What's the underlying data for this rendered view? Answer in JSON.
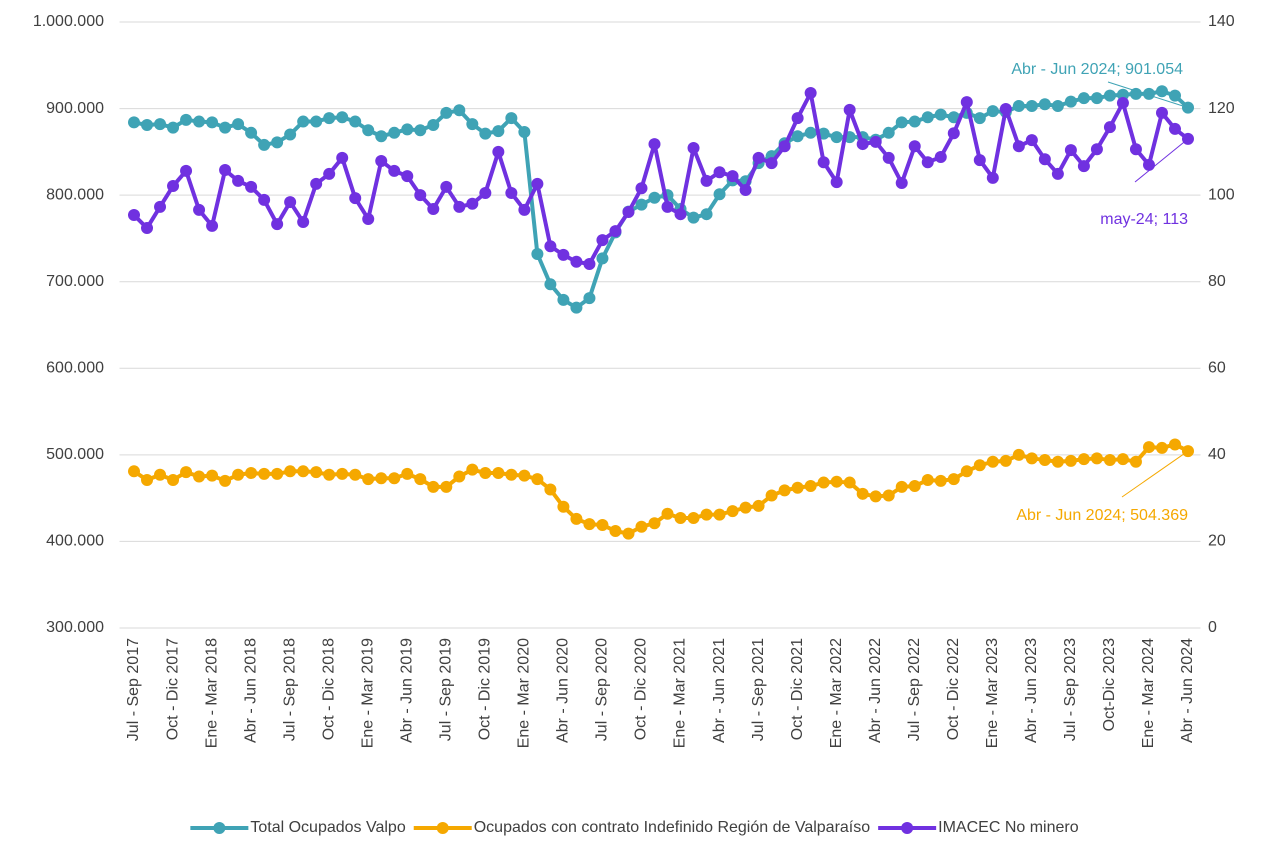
{
  "chart_data": {
    "type": "line",
    "categories": [
      "Jul - Sep 2017",
      null,
      null,
      "Oct - Dic 2017",
      null,
      null,
      "Ene - Mar 2018",
      null,
      null,
      "Abr - Jun 2018",
      null,
      null,
      "Jul - Sep 2018",
      null,
      null,
      "Oct - Dic 2018",
      null,
      null,
      "Ene - Mar 2019",
      null,
      null,
      "Abr - Jun 2019",
      null,
      null,
      "Jul - Sep 2019",
      null,
      null,
      "Oct - Dic 2019",
      null,
      null,
      "Ene - Mar 2020",
      null,
      null,
      "Abr - Jun 2020",
      null,
      null,
      "Jul - Sep 2020",
      null,
      null,
      "Oct - Dic 2020",
      null,
      null,
      "Ene - Mar 2021",
      null,
      null,
      "Abr - Jun 2021",
      null,
      null,
      "Jul - Sep 2021",
      null,
      null,
      "Oct - Dic 2021",
      null,
      null,
      "Ene - Mar 2022",
      null,
      null,
      "Abr - Jun 2022",
      null,
      null,
      "Jul - Sep 2022",
      null,
      null,
      "Oct - Dic 2022",
      null,
      null,
      "Ene - Mar 2023",
      null,
      null,
      "Abr - Jun 2023",
      null,
      null,
      "Jul - Sep 2023",
      null,
      null,
      "Oct-Dic 2023",
      null,
      null,
      "Ene - Mar 2024",
      null,
      null,
      "Abr - Jun 2024"
    ],
    "series": [
      {
        "name": "Total Ocupados Valpo",
        "color": "#3fa3b5",
        "axis": "y",
        "values": [
          884000,
          881000,
          882000,
          878000,
          887000,
          885000,
          884000,
          878000,
          882000,
          872000,
          858000,
          861000,
          870000,
          885000,
          885000,
          889000,
          890000,
          885000,
          875000,
          868000,
          872000,
          876000,
          875000,
          881000,
          895000,
          898000,
          882000,
          871000,
          874000,
          889000,
          873000,
          732000,
          697000,
          679000,
          670000,
          681000,
          727000,
          757000,
          781000,
          789000,
          797000,
          800000,
          784000,
          774000,
          778000,
          801000,
          817000,
          816000,
          837000,
          845000,
          860000,
          868000,
          872000,
          871000,
          867000,
          867000,
          867000,
          864000,
          872000,
          884000,
          885000,
          890000,
          893000,
          890000,
          895000,
          889000,
          897000,
          896000,
          903000,
          903000,
          905000,
          903000,
          908000,
          912000,
          912000,
          915000,
          916000,
          917000,
          917000,
          920000,
          915000,
          901054
        ],
        "value_labels": [
          null,
          null,
          null,
          null,
          null,
          null,
          null,
          null,
          null,
          null,
          null,
          null,
          null,
          null,
          null,
          null,
          null,
          null,
          null,
          null,
          null,
          null,
          null,
          null,
          null,
          null,
          null,
          null,
          null,
          null,
          null,
          null,
          null,
          null,
          null,
          null,
          null,
          null,
          null,
          null,
          null,
          null,
          null,
          null,
          null,
          null,
          null,
          null,
          null,
          null,
          null,
          null,
          null,
          null,
          null,
          null,
          null,
          null,
          null,
          null,
          null,
          null,
          null,
          null,
          null,
          null,
          null,
          null,
          null,
          null,
          null,
          null,
          null,
          null,
          null,
          null,
          null,
          null,
          null,
          null,
          null,
          "Abr - Jun 2024; 901.054"
        ]
      },
      {
        "name": "Ocupados con contrato Indefinido Región de Valparaíso",
        "color": "#f5a800",
        "axis": "y",
        "values": [
          481000,
          471000,
          477000,
          471000,
          480000,
          475000,
          476000,
          470000,
          477000,
          479000,
          478000,
          478000,
          481000,
          481000,
          480000,
          477000,
          478000,
          477000,
          472000,
          473000,
          473000,
          478000,
          472000,
          463000,
          463000,
          475000,
          483000,
          479000,
          479000,
          477000,
          476000,
          472000,
          460000,
          440000,
          426000,
          420000,
          419000,
          412000,
          409000,
          417000,
          421000,
          432000,
          427000,
          427000,
          431000,
          431000,
          435000,
          439000,
          441000,
          453000,
          459000,
          462000,
          464000,
          468000,
          469000,
          468000,
          455000,
          452000,
          453000,
          463000,
          464000,
          471000,
          470000,
          472000,
          481000,
          488000,
          492000,
          493000,
          500000,
          496000,
          494000,
          492000,
          493000,
          495000,
          496000,
          494000,
          495000,
          492000,
          509000,
          508000,
          512000,
          504369
        ],
        "value_labels": [
          null,
          null,
          null,
          null,
          null,
          null,
          null,
          null,
          null,
          null,
          null,
          null,
          null,
          null,
          null,
          null,
          null,
          null,
          null,
          null,
          null,
          null,
          null,
          null,
          null,
          null,
          null,
          null,
          null,
          null,
          null,
          null,
          null,
          null,
          null,
          null,
          null,
          null,
          null,
          null,
          null,
          null,
          null,
          null,
          null,
          null,
          null,
          null,
          null,
          null,
          null,
          null,
          null,
          null,
          null,
          null,
          null,
          null,
          null,
          null,
          null,
          null,
          null,
          null,
          null,
          null,
          null,
          null,
          null,
          null,
          null,
          null,
          null,
          null,
          null,
          null,
          null,
          null,
          null,
          null,
          null,
          "Abr - Jun 2024; 504.369"
        ]
      },
      {
        "name": "IMACEC No minero",
        "color": "#7031e0",
        "axis": "y2",
        "values": [
          95.4,
          92.4,
          97.3,
          102.1,
          105.6,
          96.6,
          92.9,
          105.8,
          103.3,
          101.9,
          98.9,
          93.3,
          98.4,
          93.8,
          102.6,
          104.9,
          108.6,
          99.3,
          94.5,
          107.9,
          105.6,
          104.4,
          100.0,
          96.8,
          101.9,
          97.3,
          98.0,
          100.5,
          110.0,
          100.5,
          96.6,
          102.6,
          88.2,
          86.2,
          84.6,
          84.1,
          89.6,
          91.7,
          96.1,
          101.6,
          111.8,
          97.3,
          95.6,
          110.9,
          103.3,
          105.3,
          104.4,
          101.2,
          108.6,
          107.4,
          111.3,
          117.8,
          123.6,
          107.6,
          103.0,
          119.7,
          111.8,
          112.3,
          108.6,
          102.8,
          111.3,
          107.6,
          108.8,
          114.3,
          121.5,
          108.1,
          104.0,
          119.9,
          111.3,
          112.7,
          108.3,
          104.9,
          110.4,
          106.7,
          110.6,
          115.7,
          121.3,
          110.6,
          107.0,
          119.0,
          115.3,
          113
        ],
        "value_labels": [
          null,
          null,
          null,
          null,
          null,
          null,
          null,
          null,
          null,
          null,
          null,
          null,
          null,
          null,
          null,
          null,
          null,
          null,
          null,
          null,
          null,
          null,
          null,
          null,
          null,
          null,
          null,
          null,
          null,
          null,
          null,
          null,
          null,
          null,
          null,
          null,
          null,
          null,
          null,
          null,
          null,
          null,
          null,
          null,
          null,
          null,
          null,
          null,
          null,
          null,
          null,
          null,
          null,
          null,
          null,
          null,
          null,
          null,
          null,
          null,
          null,
          null,
          null,
          null,
          null,
          null,
          null,
          null,
          null,
          null,
          null,
          null,
          null,
          null,
          null,
          null,
          null,
          null,
          null,
          null,
          null,
          "may-24; 113"
        ]
      }
    ],
    "ylim": [
      300000,
      1000000
    ],
    "yticks": [
      {
        "value": 300000,
        "label": "300.000"
      },
      {
        "value": 400000,
        "label": "400.000"
      },
      {
        "value": 500000,
        "label": "500.000"
      },
      {
        "value": 600000,
        "label": "600.000"
      },
      {
        "value": 700000,
        "label": "700.000"
      },
      {
        "value": 800000,
        "label": "800.000"
      },
      {
        "value": 900000,
        "label": "900.000"
      },
      {
        "value": 1000000,
        "label": "1.000.000"
      }
    ],
    "y2lim": [
      0,
      140
    ],
    "y2ticks": [
      0,
      20,
      40,
      60,
      80,
      100,
      120,
      140
    ],
    "grid": true,
    "legend": "bottom"
  }
}
